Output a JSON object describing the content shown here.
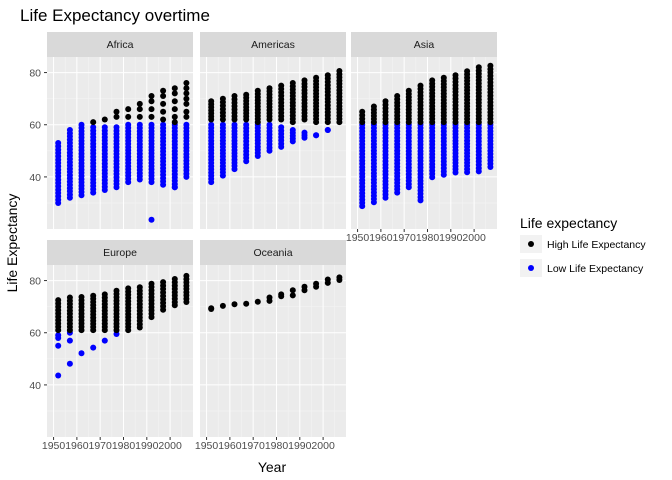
{
  "chart_data": {
    "type": "scatter",
    "title": "Life Expectancy overtime",
    "xlabel": "Year",
    "ylabel": "Life Expectancy",
    "xlim": [
      1950,
      2007
    ],
    "ylim": [
      23,
      83
    ],
    "x_ticks": [
      1950,
      1960,
      1970,
      1980,
      1990,
      2000
    ],
    "y_ticks": [
      40,
      60,
      80
    ],
    "grid": true,
    "facet_by": "continent",
    "legend": {
      "title": "Life expectancy",
      "position": "right",
      "entries": [
        {
          "label": "High Life Expectancy",
          "color": "#000000"
        },
        {
          "label": "Low Life Expectancy",
          "color": "#0000ff"
        }
      ]
    },
    "colors": {
      "high": "#000000",
      "low": "#0000ff",
      "panel_bg": "#ebebeb",
      "strip_bg": "#d9d9d9",
      "grid_major": "#ffffff",
      "grid_minor": "#f5f5f5"
    },
    "years": [
      1952,
      1957,
      1962,
      1967,
      1972,
      1977,
      1982,
      1987,
      1992,
      1997,
      2002,
      2007
    ],
    "facets": [
      {
        "name": "Africa",
        "high": [
          [
            1967,
            61
          ],
          [
            1972,
            62
          ],
          [
            1977,
            63
          ],
          [
            1977,
            65
          ],
          [
            1982,
            66
          ],
          [
            1982,
            63
          ],
          [
            1987,
            68
          ],
          [
            1987,
            66
          ],
          [
            1987,
            63
          ],
          [
            1992,
            71
          ],
          [
            1992,
            69
          ],
          [
            1992,
            66
          ],
          [
            1992,
            63
          ],
          [
            1997,
            73
          ],
          [
            1997,
            71
          ],
          [
            1997,
            68
          ],
          [
            1997,
            65
          ],
          [
            1997,
            62
          ],
          [
            2002,
            74
          ],
          [
            2002,
            72
          ],
          [
            2002,
            69
          ],
          [
            2002,
            66
          ],
          [
            2002,
            63
          ],
          [
            2002,
            61
          ],
          [
            2007,
            76
          ],
          [
            2007,
            74
          ],
          [
            2007,
            72
          ],
          [
            2007,
            70
          ],
          [
            2007,
            68
          ],
          [
            2007,
            65
          ],
          [
            2007,
            63
          ]
        ],
        "low": [
          {
            "year": 1952,
            "min": 30,
            "max": 53
          },
          {
            "year": 1957,
            "min": 32,
            "max": 58
          },
          {
            "year": 1962,
            "min": 33,
            "max": 60
          },
          {
            "year": 1967,
            "min": 34,
            "max": 59
          },
          {
            "year": 1972,
            "min": 35,
            "max": 59
          },
          {
            "year": 1977,
            "min": 36,
            "max": 59
          },
          {
            "year": 1982,
            "min": 38,
            "max": 60
          },
          {
            "year": 1987,
            "min": 39,
            "max": 60
          },
          {
            "year": 1992,
            "min": 38,
            "max": 60
          },
          {
            "year": 1997,
            "min": 37,
            "max": 60
          },
          {
            "year": 2002,
            "min": 36,
            "max": 60
          },
          {
            "year": 2007,
            "min": 40,
            "max": 60
          }
        ],
        "low_extra": [
          [
            1992,
            23.6
          ],
          [
            2002,
            36
          ]
        ]
      },
      {
        "name": "Americas",
        "high": [
          {
            "year": 1952,
            "min": 62,
            "max": 69
          },
          {
            "year": 1957,
            "min": 62,
            "max": 70
          },
          {
            "year": 1962,
            "min": 62,
            "max": 71
          },
          {
            "year": 1967,
            "min": 62,
            "max": 71.5
          },
          {
            "year": 1972,
            "min": 61,
            "max": 73
          },
          {
            "year": 1977,
            "min": 62,
            "max": 74
          },
          {
            "year": 1982,
            "min": 62,
            "max": 75
          },
          {
            "year": 1987,
            "min": 61,
            "max": 76
          },
          {
            "year": 1992,
            "min": 62,
            "max": 77
          },
          {
            "year": 1997,
            "min": 61,
            "max": 78
          },
          {
            "year": 2002,
            "min": 61,
            "max": 79
          },
          {
            "year": 2007,
            "min": 61,
            "max": 80.6
          }
        ],
        "low": [
          {
            "year": 1952,
            "min": 38,
            "max": 60
          },
          {
            "year": 1957,
            "min": 40.5,
            "max": 60
          },
          {
            "year": 1962,
            "min": 43,
            "max": 60
          },
          {
            "year": 1967,
            "min": 46,
            "max": 60
          },
          {
            "year": 1972,
            "min": 48,
            "max": 60
          },
          {
            "year": 1977,
            "min": 50,
            "max": 60
          },
          {
            "year": 1982,
            "min": 51.5,
            "max": 59
          },
          {
            "year": 1987,
            "min": 53.6,
            "max": 58
          },
          {
            "year": 1992,
            "min": 55,
            "max": 57
          },
          {
            "year": 1997,
            "min": 56,
            "max": 56
          },
          {
            "year": 2002,
            "min": 58,
            "max": 58
          }
        ]
      },
      {
        "name": "Asia",
        "high": [
          {
            "year": 1952,
            "min": 61,
            "max": 65
          },
          {
            "year": 1957,
            "min": 61,
            "max": 67
          },
          {
            "year": 1962,
            "min": 61,
            "max": 69
          },
          {
            "year": 1967,
            "min": 61,
            "max": 71
          },
          {
            "year": 1972,
            "min": 61,
            "max": 73
          },
          {
            "year": 1977,
            "min": 61,
            "max": 75
          },
          {
            "year": 1982,
            "min": 61,
            "max": 77
          },
          {
            "year": 1987,
            "min": 61,
            "max": 78
          },
          {
            "year": 1992,
            "min": 61,
            "max": 79
          },
          {
            "year": 1997,
            "min": 61,
            "max": 80.5
          },
          {
            "year": 2002,
            "min": 61,
            "max": 82
          },
          {
            "year": 2007,
            "min": 61,
            "max": 82.6
          }
        ],
        "low": [
          {
            "year": 1952,
            "min": 28.8,
            "max": 60
          },
          {
            "year": 1957,
            "min": 30.3,
            "max": 60
          },
          {
            "year": 1962,
            "min": 32,
            "max": 60
          },
          {
            "year": 1967,
            "min": 34,
            "max": 60
          },
          {
            "year": 1972,
            "min": 36,
            "max": 60
          },
          {
            "year": 1977,
            "min": 31,
            "max": 60
          },
          {
            "year": 1982,
            "min": 39.9,
            "max": 60
          },
          {
            "year": 1987,
            "min": 40.8,
            "max": 60
          },
          {
            "year": 1992,
            "min": 41.7,
            "max": 60
          },
          {
            "year": 1997,
            "min": 41.8,
            "max": 60
          },
          {
            "year": 2002,
            "min": 42.1,
            "max": 60
          },
          {
            "year": 2007,
            "min": 43.8,
            "max": 60
          }
        ]
      },
      {
        "name": "Europe",
        "high": [
          {
            "year": 1952,
            "min": 61,
            "max": 72.5
          },
          {
            "year": 1957,
            "min": 61,
            "max": 73.5
          },
          {
            "year": 1962,
            "min": 61,
            "max": 73.7
          },
          {
            "year": 1967,
            "min": 61,
            "max": 74.2
          },
          {
            "year": 1972,
            "min": 61,
            "max": 74.7
          },
          {
            "year": 1977,
            "min": 61,
            "max": 76.1
          },
          {
            "year": 1982,
            "min": 61,
            "max": 77
          },
          {
            "year": 1987,
            "min": 62,
            "max": 77.4
          },
          {
            "year": 1992,
            "min": 66,
            "max": 78.8
          },
          {
            "year": 1997,
            "min": 68.8,
            "max": 79.4
          },
          {
            "year": 2002,
            "min": 70.5,
            "max": 80.6
          },
          {
            "year": 2007,
            "min": 71.8,
            "max": 81.8
          }
        ],
        "low": [
          [
            1952,
            43.6
          ],
          [
            1952,
            55
          ],
          [
            1952,
            58
          ],
          [
            1952,
            59
          ],
          [
            1957,
            48.1
          ],
          [
            1957,
            57
          ],
          [
            1957,
            60
          ],
          [
            1962,
            52.1
          ],
          [
            1967,
            54.3
          ],
          [
            1972,
            57
          ],
          [
            1977,
            59.5
          ]
        ]
      },
      {
        "name": "Oceania",
        "high": [
          [
            1952,
            69.1
          ],
          [
            1952,
            69.4
          ],
          [
            1957,
            70.3
          ],
          [
            1962,
            70.9
          ],
          [
            1967,
            71.1
          ],
          [
            1972,
            71.9
          ],
          [
            1977,
            72.2
          ],
          [
            1977,
            73.5
          ],
          [
            1982,
            74.0
          ],
          [
            1982,
            74.7
          ],
          [
            1987,
            74.3
          ],
          [
            1987,
            76.3
          ],
          [
            1992,
            76.3
          ],
          [
            1992,
            77.6
          ],
          [
            1997,
            77.6
          ],
          [
            1997,
            78.8
          ],
          [
            2002,
            79.1
          ],
          [
            2002,
            80.4
          ],
          [
            2007,
            80.2
          ],
          [
            2007,
            81.2
          ]
        ],
        "low": []
      }
    ]
  }
}
